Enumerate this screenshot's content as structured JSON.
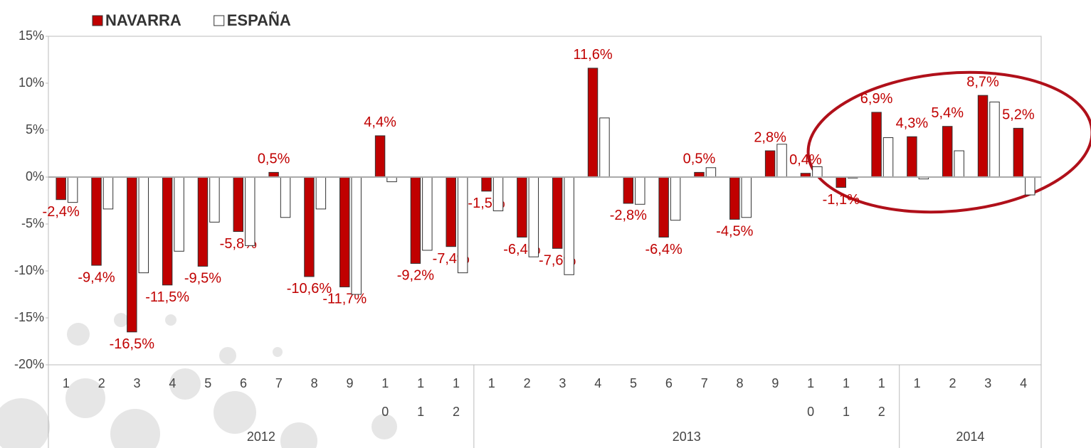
{
  "chart_data": {
    "type": "bar",
    "categories": [
      "1",
      "2",
      "3",
      "4",
      "5",
      "6",
      "7",
      "8",
      "9",
      "10",
      "11",
      "12",
      "1",
      "2",
      "3",
      "4",
      "5",
      "6",
      "7",
      "8",
      "9",
      "10",
      "11",
      "12",
      "1",
      "2",
      "3",
      "4"
    ],
    "groups": [
      {
        "label": "2012",
        "count": 12
      },
      {
        "label": "2013",
        "count": 12
      },
      {
        "label": "2014",
        "count": 4
      }
    ],
    "series": [
      {
        "name": "NAVARRA",
        "color": "#c00000",
        "values": [
          -2.4,
          -9.4,
          -16.5,
          -11.5,
          -9.5,
          -5.8,
          0.5,
          -10.6,
          -11.7,
          4.4,
          -9.2,
          -7.4,
          -1.5,
          -6.4,
          -7.6,
          11.6,
          -2.8,
          -6.4,
          0.5,
          -4.5,
          2.8,
          0.4,
          -1.1,
          6.9,
          4.3,
          5.4,
          8.7,
          5.2
        ],
        "value_labels": [
          "-2,4%",
          "-9,4%",
          "-16,5%",
          "-11,5%",
          "-9,5%",
          "-5,8%",
          "0,5%",
          "-10,6%",
          "-11,7%",
          "4,4%",
          "-9,2%",
          "-7,4%",
          "-1,5%",
          "-6,4%",
          "-7,6%",
          "11,6%",
          "-2,8%",
          "-6,4%",
          "0,5%",
          "-4,5%",
          "2,8%",
          "0,4%",
          "-1,1%",
          "6,9%",
          "4,3%",
          "5,4%",
          "8,7%",
          "5,2%"
        ]
      },
      {
        "name": "ESPAÑA",
        "color": "#ffffff",
        "values": [
          -2.7,
          -3.4,
          -10.2,
          -7.9,
          -4.8,
          -7.3,
          -4.3,
          -3.4,
          -12.5,
          -0.5,
          -7.8,
          -10.2,
          -3.6,
          -8.5,
          -10.4,
          6.3,
          -2.9,
          -4.6,
          1.0,
          -4.3,
          3.5,
          1.1,
          -0.1,
          4.2,
          -0.2,
          2.8,
          8.0,
          -1.9
        ]
      }
    ],
    "ylim": [
      -20,
      15
    ],
    "yticks": [
      {
        "value": -20,
        "label": "-20%"
      },
      {
        "value": -15,
        "label": "-15%"
      },
      {
        "value": -10,
        "label": "-10%"
      },
      {
        "value": -5,
        "label": "-5%"
      },
      {
        "value": 0,
        "label": "0%"
      },
      {
        "value": 5,
        "label": "5%"
      },
      {
        "value": 10,
        "label": "10%"
      },
      {
        "value": 15,
        "label": "15%"
      }
    ]
  }
}
